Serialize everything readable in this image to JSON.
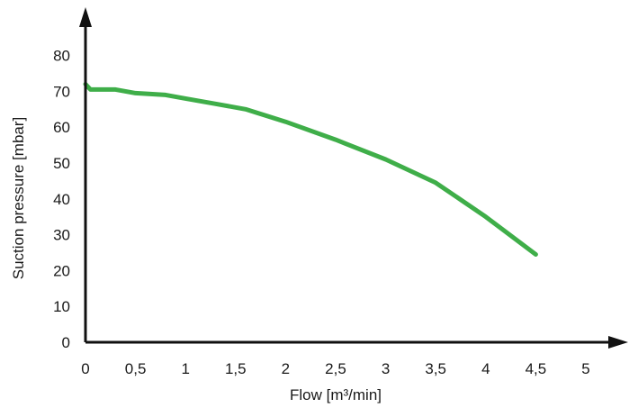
{
  "chart_data": {
    "type": "line",
    "title": "",
    "xlabel": "Flow [m³/min]",
    "ylabel": "Suction pressure [mbar]",
    "xlim": [
      0,
      5
    ],
    "ylim": [
      0,
      80
    ],
    "x_ticks": [
      "0",
      "0,5",
      "1",
      "1,5",
      "2",
      "2,5",
      "3",
      "3,5",
      "4",
      "4,5",
      "5"
    ],
    "y_ticks": [
      "0",
      "10",
      "20",
      "30",
      "40",
      "50",
      "60",
      "70",
      "80"
    ],
    "grid": false,
    "legend": "none",
    "series": [
      {
        "color": "#3fae49",
        "x": [
          0,
          0.05,
          0.1,
          0.3,
          0.4,
          0.5,
          0.8,
          1.0,
          1.3,
          1.6,
          2.0,
          2.5,
          3.0,
          3.5,
          4.0,
          4.5
        ],
        "y": [
          72,
          70.5,
          70.5,
          70.5,
          70,
          69.5,
          69,
          68,
          66.5,
          65,
          61.5,
          56.5,
          51,
          44.5,
          35,
          24.5
        ]
      }
    ]
  }
}
